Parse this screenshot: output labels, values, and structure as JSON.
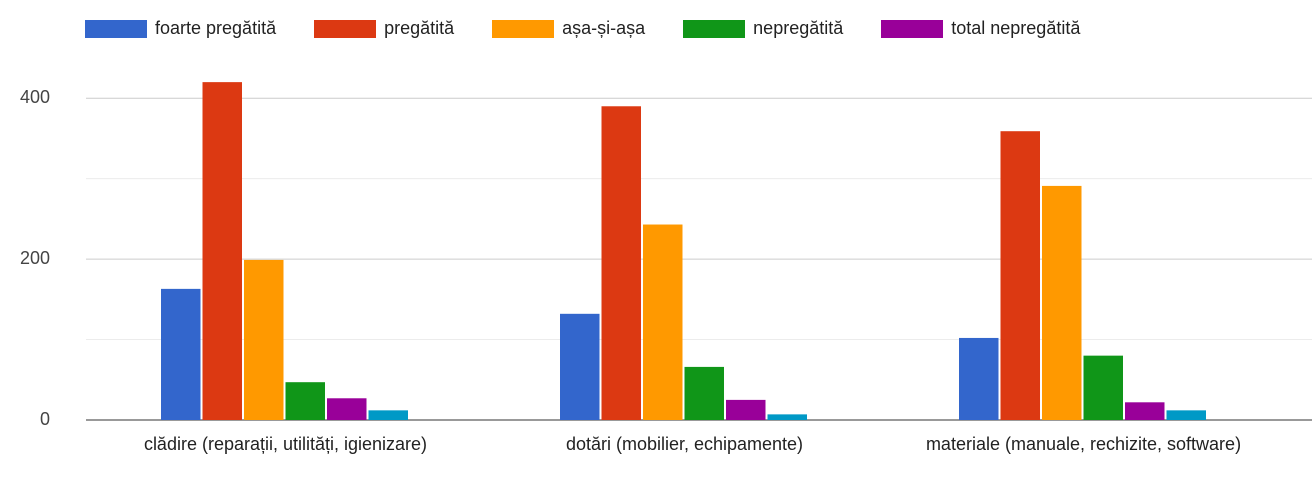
{
  "chart_data": {
    "type": "bar",
    "categories": [
      "clădire (reparații, utilități, igienizare)",
      "dotări (mobilier, echipamente)",
      "materiale (manuale, rechizite, software)"
    ],
    "series": [
      {
        "name": "foarte pregătită",
        "color": "#3366cc",
        "values": [
          163,
          132,
          102
        ]
      },
      {
        "name": "pregătită",
        "color": "#dc3912",
        "values": [
          420,
          390,
          359
        ]
      },
      {
        "name": "așa-și-așa",
        "color": "#ff9900",
        "values": [
          199,
          243,
          291
        ]
      },
      {
        "name": "nepregătită",
        "color": "#109618",
        "values": [
          47,
          66,
          80
        ]
      },
      {
        "name": "total nepregătită",
        "color": "#990099",
        "values": [
          27,
          25,
          22
        ]
      },
      {
        "color": "#0099c6",
        "values": [
          12,
          7,
          12
        ]
      }
    ],
    "ylim": [
      0,
      450
    ],
    "yticks": [
      0,
      200,
      400
    ],
    "minor_yticks": [
      100,
      300
    ],
    "grid": true
  }
}
